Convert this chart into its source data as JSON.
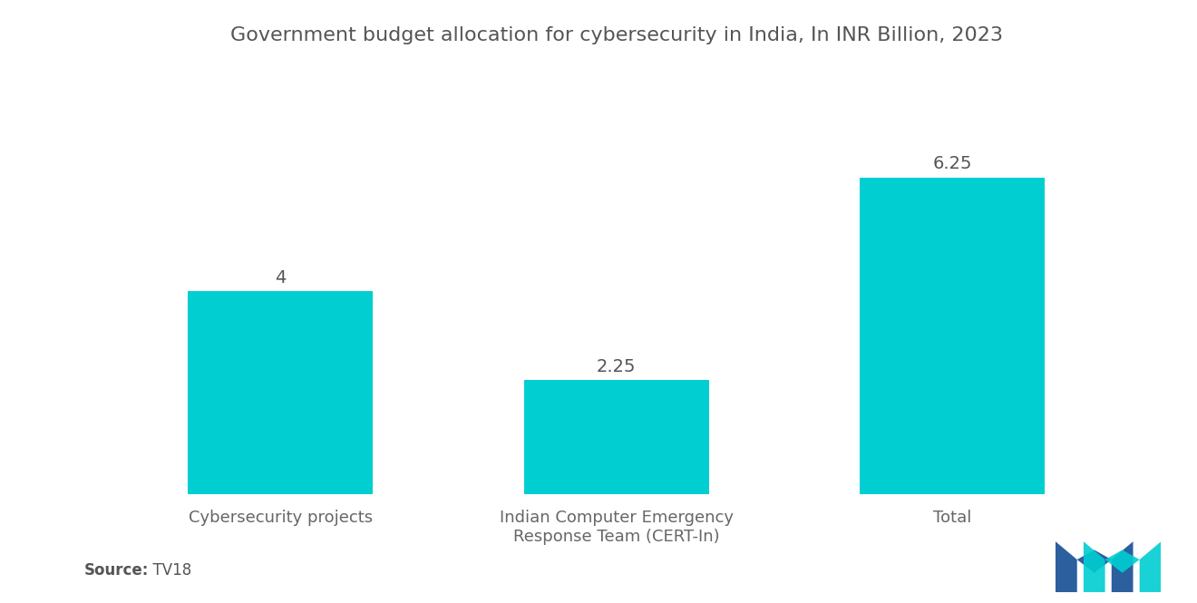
{
  "title": "Government budget allocation for cybersecurity in India, In INR Billion, 2023",
  "categories": [
    "Cybersecurity projects",
    "Indian Computer Emergency\nResponse Team (CERT-In)",
    "Total"
  ],
  "values": [
    4.0,
    2.25,
    6.25
  ],
  "bar_color": "#00CED1",
  "value_labels": [
    "4",
    "2.25",
    "6.25"
  ],
  "source_bold": "Source:",
  "source_normal": "  TV18",
  "background_color": "#ffffff",
  "title_fontsize": 16,
  "label_fontsize": 13,
  "value_fontsize": 14,
  "ylim": [
    0,
    8.2
  ],
  "bar_width": 0.55,
  "x_positions": [
    0,
    1,
    2
  ],
  "xlim": [
    -0.55,
    2.55
  ],
  "logo_color_blue": "#2B5F9E",
  "logo_color_teal": "#00CED1"
}
